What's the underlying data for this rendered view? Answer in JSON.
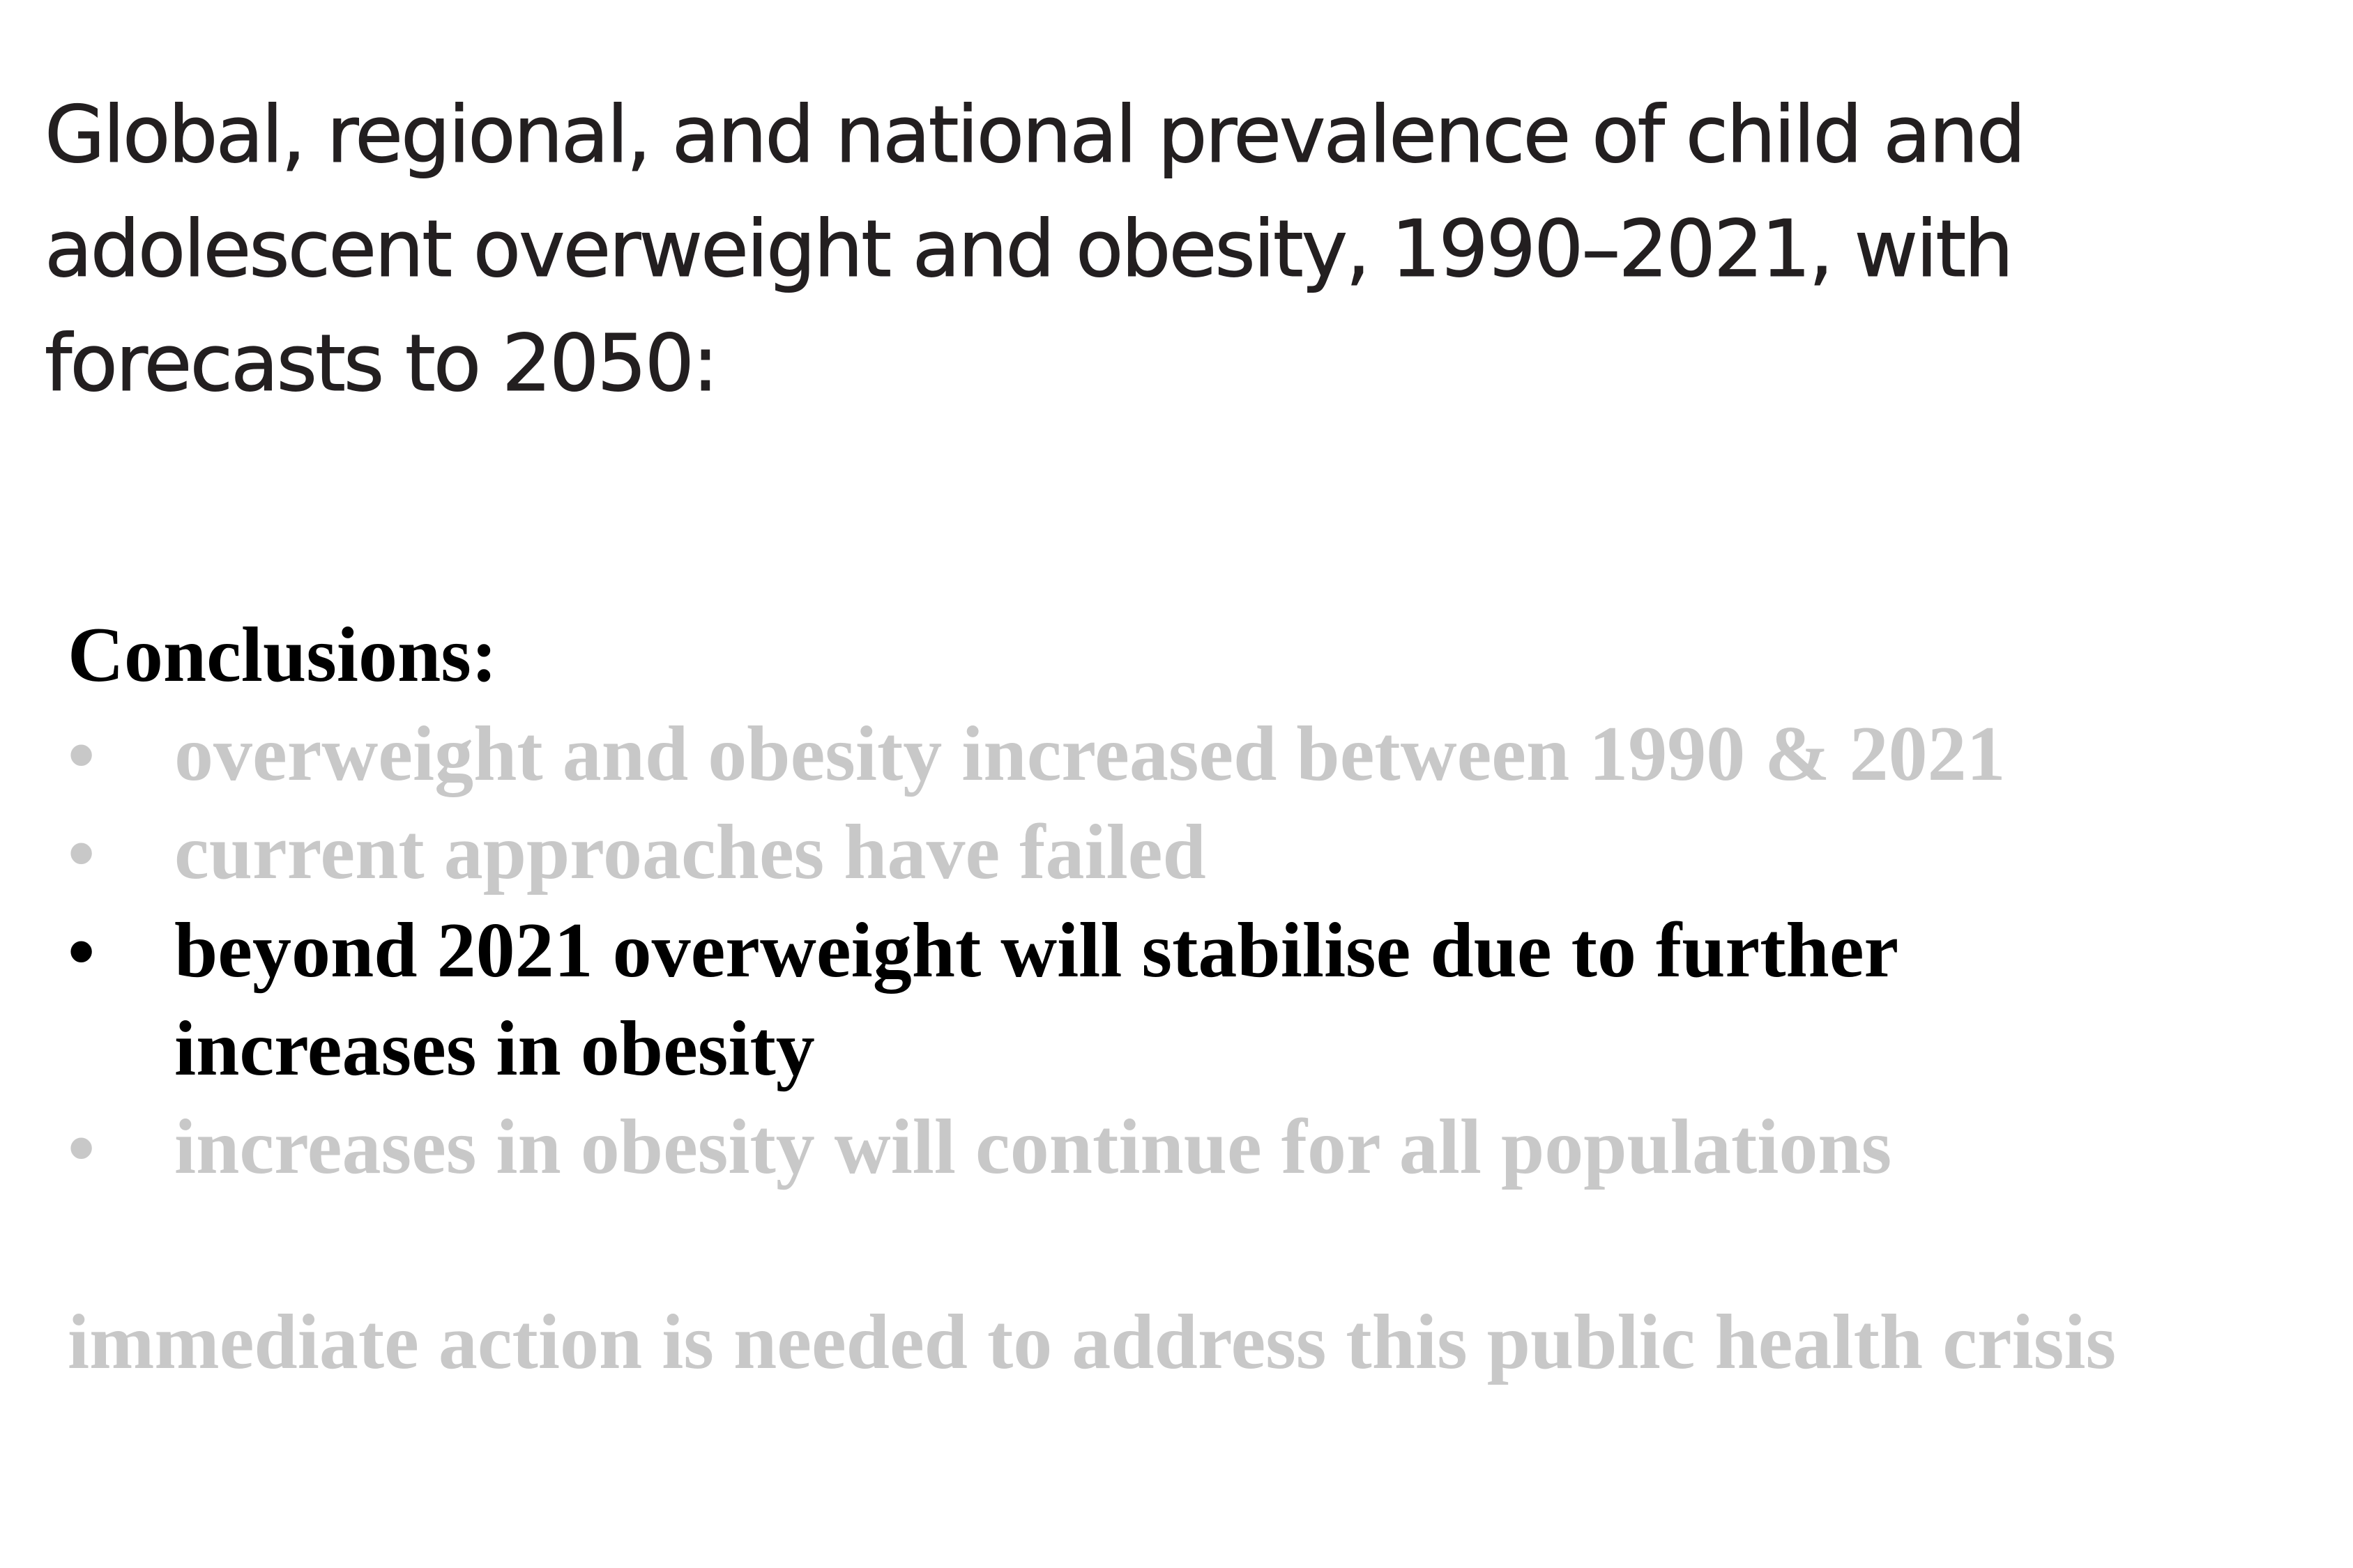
{
  "title": {
    "line1": "Global, regional, and national prevalence of child and",
    "line2": "adolescent overweight and obesity, 1990–2021, with",
    "line3": "forecasts to 2050:"
  },
  "conclusions": {
    "heading": "Conclusions:",
    "bullet_marker": "•",
    "items": [
      {
        "text": "overweight and obesity increased between 1990 & 2021",
        "highlighted": false
      },
      {
        "text": "current approaches have failed",
        "highlighted": false
      },
      {
        "line1": "beyond 2021 overweight will stabilise due to further",
        "line2": "increases in obesity",
        "highlighted": true
      },
      {
        "text": "increases in obesity will continue for all populations",
        "highlighted": false
      }
    ],
    "closing": "immediate action is needed to address this public health crisis"
  },
  "colors": {
    "title_text": "#231f20",
    "active_text": "#000000",
    "dimmed_text": "#c8c8c8",
    "background": "#ffffff"
  }
}
